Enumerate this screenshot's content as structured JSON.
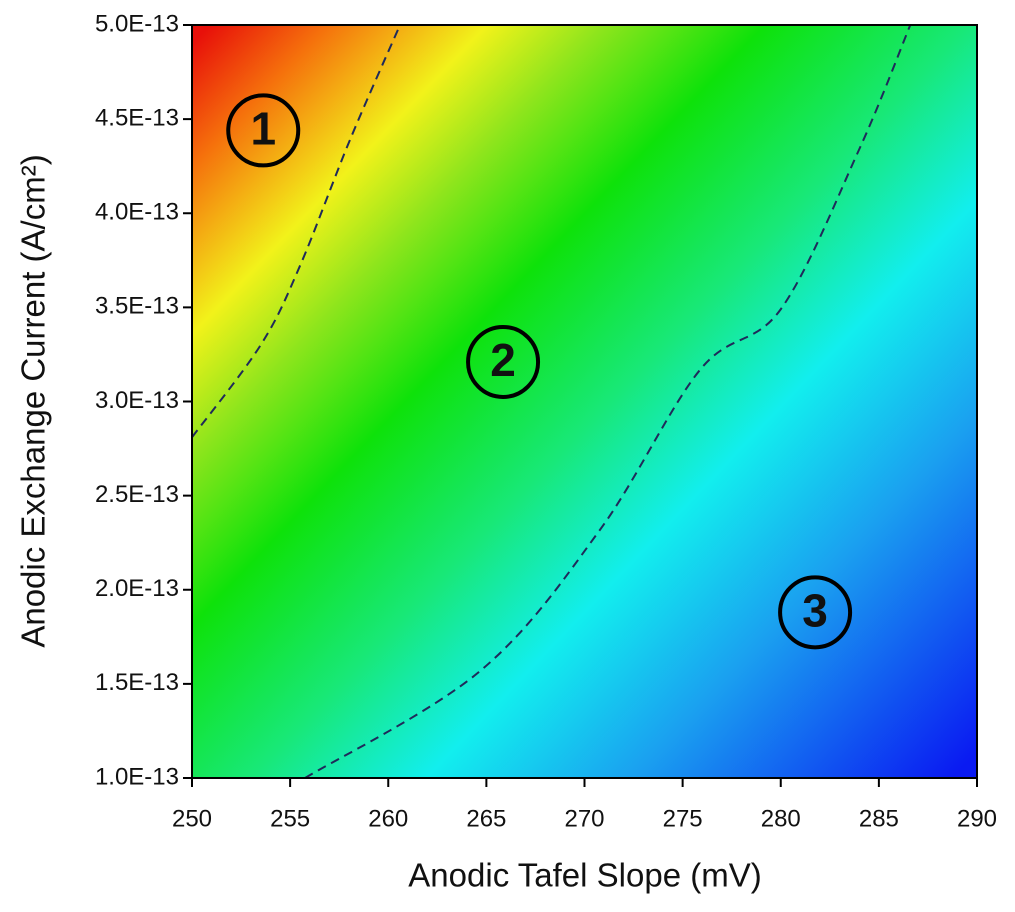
{
  "chart_data": {
    "type": "contour",
    "xlabel": "Anodic Tafel Slope (mV)",
    "ylabel": "Anodic Exchange Current (A/cm²)",
    "xlim": [
      250,
      290
    ],
    "xticks": [
      250,
      255,
      260,
      265,
      270,
      275,
      280,
      285,
      290
    ],
    "ylim": [
      1e-13,
      5e-13
    ],
    "yticks": [
      {
        "value": 1e-13,
        "label": "1.0E-13"
      },
      {
        "value": 1.5e-13,
        "label": "1.5E-13"
      },
      {
        "value": 2e-13,
        "label": "2.0E-13"
      },
      {
        "value": 2.5e-13,
        "label": "2.5E-13"
      },
      {
        "value": 3e-13,
        "label": "3.0E-13"
      },
      {
        "value": 3.5e-13,
        "label": "3.5E-13"
      },
      {
        "value": 4e-13,
        "label": "4.0E-13"
      },
      {
        "value": 4.5e-13,
        "label": "4.5E-13"
      },
      {
        "value": 5e-13,
        "label": "5.0E-13"
      }
    ],
    "contour_color": "#1f2a5a",
    "contours": [
      {
        "x": [
          250,
          253.5,
          255.5,
          258.05,
          260.6
        ],
        "values": [
          2.81e-13,
          3.3e-13,
          3.72e-13,
          4.39e-13,
          5e-13
        ]
      },
      {
        "x": [
          255.76,
          264.7,
          270.8,
          275.9,
          280.0,
          284.0,
          286.6
        ],
        "values": [
          1e-13,
          1.57e-13,
          2.32e-13,
          3.17e-13,
          3.49e-13,
          4.34e-13,
          5e-13
        ]
      }
    ],
    "annotations": [
      {
        "text": "1",
        "x": 253.63,
        "y": 4.44e-13
      },
      {
        "text": "2",
        "x": 265.85,
        "y": 3.21e-13
      },
      {
        "text": "3",
        "x": 281.75,
        "y": 1.88e-13
      }
    ]
  }
}
